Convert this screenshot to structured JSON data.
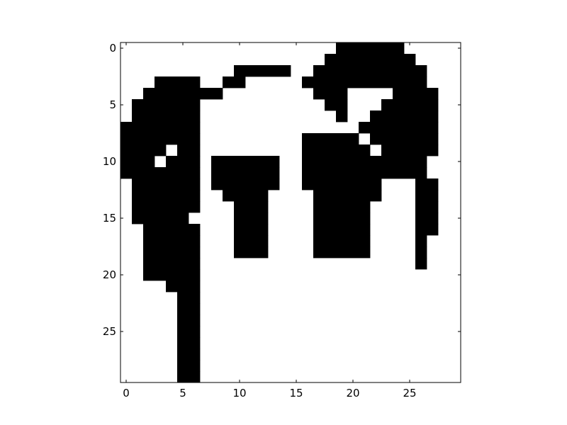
{
  "chart_data": {
    "type": "heatmap",
    "colormap": {
      "0": "#ffffff",
      "1": "#000000"
    },
    "title": "",
    "xlabel": "",
    "ylabel": "",
    "xlim": [
      -0.5,
      29.5
    ],
    "ylim": [
      29.5,
      -0.5
    ],
    "x_ticks": [
      0,
      5,
      10,
      15,
      20,
      25
    ],
    "y_ticks": [
      0,
      5,
      10,
      15,
      20,
      25
    ],
    "grid": false,
    "legend": "none",
    "rows": [
      "000000000000000000011111100000",
      "000000000000000000111111110000",
      "000000000011111001111111111000",
      "000111100110000011111111111000",
      "001111111000000001110000111100",
      "011111100000000000110001111100",
      "011111100000000000010011111100",
      "111111100000000000000111111100",
      "111111100000000011111011111100",
      "111101100000000011111101111100",
      "111011101111110011111111111000",
      "111111101111110011111111111000",
      "011111101111110011111110001100",
      "011111100111100001111110001100",
      "011111100011100001111100001100",
      "011111000011100001111100001100",
      "001111100011100001111100001100",
      "001111100011100001111100001000",
      "001111100011100001111100001000",
      "001111100000000000000000001000",
      "001111100000000000000000000000",
      "000011100000000000000000000000",
      "000001100000000000000000000000",
      "000001100000000000000000000000",
      "000001100000000000000000000000",
      "000001100000000000000000000000",
      "000001100000000000000000000000",
      "000001100000000000000000000000",
      "000001100000000000000000000000",
      "000001100000000000000000000000"
    ]
  }
}
